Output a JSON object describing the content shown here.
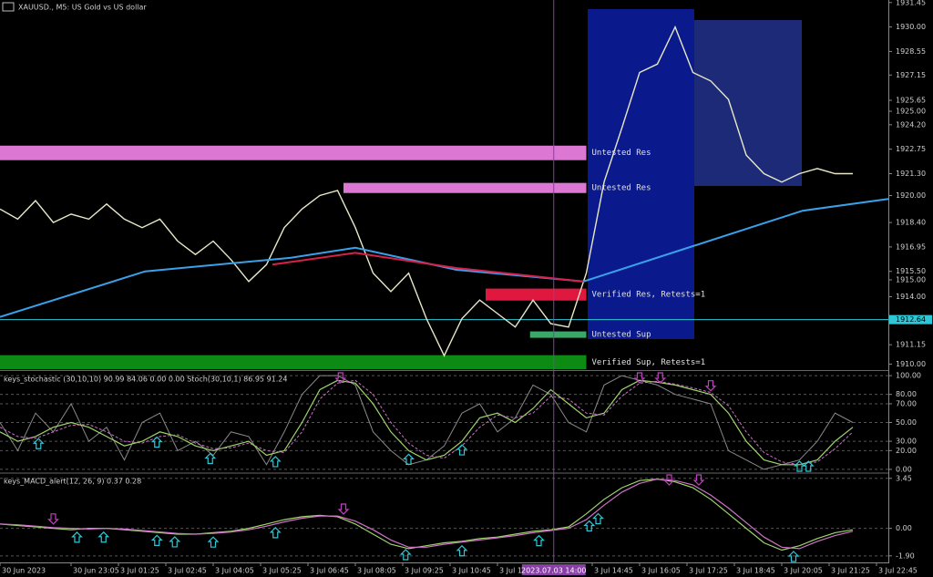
{
  "chart_data": {
    "type": "financial",
    "title": "XAUUSD., M5:  US Gold vs US dollar",
    "xlim": [
      0,
      300
    ],
    "x": [
      0,
      6,
      12,
      18,
      24,
      30,
      36,
      42,
      48,
      54,
      60,
      66,
      72,
      78,
      84,
      90,
      96,
      102,
      108,
      114,
      120,
      126,
      132,
      138,
      144,
      150,
      156,
      162,
      168,
      174,
      180,
      186,
      192,
      198,
      204,
      210,
      216,
      222,
      228,
      234,
      240,
      246,
      252,
      258,
      264,
      270,
      276,
      282,
      288
    ],
    "xticks": [
      {
        "value": 0,
        "label": "30 Jun 2023"
      },
      {
        "value": 24,
        "label": "30 Jun 23:05"
      },
      {
        "value": 40,
        "label": "3 Jul 01:25"
      },
      {
        "value": 56,
        "label": "3 Jul 02:45"
      },
      {
        "value": 72,
        "label": "3 Jul 04:05"
      },
      {
        "value": 88,
        "label": "3 Jul 05:25"
      },
      {
        "value": 104,
        "label": "3 Jul 06:45"
      },
      {
        "value": 120,
        "label": "3 Jul 08:05"
      },
      {
        "value": 136,
        "label": "3 Jul 09:25"
      },
      {
        "value": 152,
        "label": "3 Jul 10:45"
      },
      {
        "value": 168,
        "label": "3 Jul 12:05"
      },
      {
        "value": 200,
        "label": "3 Jul 14:45"
      },
      {
        "value": 216,
        "label": "3 Jul 16:05"
      },
      {
        "value": 232,
        "label": "3 Jul 17:25"
      },
      {
        "value": 248,
        "label": "3 Jul 18:45"
      },
      {
        "value": 264,
        "label": "3 Jul 20:05"
      },
      {
        "value": 280,
        "label": "3 Jul 21:25"
      },
      {
        "value": 296,
        "label": "3 Jul 22:45"
      }
    ],
    "cursor": {
      "value": 187,
      "label": "2023.07.03 14:00"
    },
    "panes": [
      {
        "type": "line",
        "ylim": [
          1909.7,
          1931.6
        ],
        "grid": false,
        "yticks": [
          1931.45,
          {
            "value": 1930,
            "label": "1930.00"
          },
          1928.55,
          1927.15,
          1925.65,
          {
            "value": 1925,
            "label": "1925.00"
          },
          {
            "value": 1924.2,
            "label": "1924.20"
          },
          1922.75,
          {
            "value": 1921.3,
            "label": "1921.30"
          },
          {
            "value": 1920,
            "label": "1920.00"
          },
          {
            "value": 1918.4,
            "label": "1918.40"
          },
          1916.95,
          {
            "value": 1915.5,
            "label": "1915.50"
          },
          {
            "value": 1915,
            "label": "1915.00"
          },
          {
            "value": 1914,
            "label": "1914.00"
          },
          1911.15,
          {
            "value": 1910,
            "label": "1910.00"
          }
        ],
        "current": {
          "value": 1912.64,
          "label": "1912.64",
          "color": "#2fc7d6"
        },
        "zones": [
          {
            "label": "Untested Res",
            "color": "#dd77d4",
            "x": [
              0,
              198
            ],
            "y": [
              1922.1,
              1922.96
            ]
          },
          {
            "label": "Untested Res",
            "color": "#dd77d4",
            "x": [
              116,
              198
            ],
            "y": [
              1920.15,
              1920.75
            ]
          },
          {
            "label": "Verified Res, Retests=1",
            "color": "#e0183f",
            "x": [
              164,
              198
            ],
            "y": [
              1913.77,
              1914.48
            ]
          },
          {
            "label": "Untested Sup",
            "color": "#3aa868",
            "x": [
              179,
              198
            ],
            "y": [
              1911.56,
              1911.94
            ]
          },
          {
            "label": "Verified Sup, Retests=1",
            "color": "#0d8a14",
            "x": [
              0,
              198
            ],
            "y": [
              1909.7,
              1910.53
            ]
          }
        ],
        "series": [
          {
            "color": "#e8e8c8",
            "width": 1.4,
            "values": [
              1919.2,
              1918.6,
              1919.7,
              1918.4,
              1918.9,
              1918.6,
              1919.5,
              1918.6,
              1918.1,
              1918.6,
              1917.3,
              1916.5,
              1917.3,
              1916.2,
              1914.9,
              1915.9,
              1918.1,
              1919.2,
              1920.0,
              1920.3,
              1918.1,
              1915.4,
              1914.3,
              1915.4,
              1912.7,
              1910.5,
              1912.7,
              1913.8,
              1913.0,
              1912.2,
              1913.8,
              1912.4,
              1912.2,
              1915.4,
              1920.8,
              1924.0,
              1927.3,
              1927.8,
              1930.0,
              1927.3,
              1926.8,
              1925.7,
              1922.4,
              1921.3,
              1920.8,
              1921.3,
              1921.6,
              1921.3,
              1921.3
            ]
          },
          {
            "color": "#3aa0e8",
            "width": 2,
            "x": [
              0,
              49,
              98,
              120,
              154,
              197,
              234,
              271,
              300
            ],
            "values": [
              1912.8,
              1915.5,
              1916.3,
              1916.9,
              1915.6,
              1914.9,
              1917.0,
              1919.1,
              1919.8
            ]
          },
          {
            "color": "#d8204c",
            "width": 2,
            "x": [
              92,
              120,
              154,
              197
            ],
            "values": [
              1915.9,
              1916.6,
              1915.7,
              1914.9
            ]
          }
        ]
      },
      {
        "type": "line",
        "title": "keys_stochastic (30,10,10) 90.99 84.06 0.00 0.00 Stoch(30,10,1) 86.95 91.24",
        "ylim": [
          -3,
          104
        ],
        "grid": true,
        "yticks": [
          {
            "value": 100,
            "label": "100.00"
          },
          {
            "value": 80,
            "label": "80.00"
          },
          {
            "value": 70,
            "label": "70.00"
          },
          {
            "value": 50,
            "label": "50.00"
          },
          {
            "value": 30,
            "label": "30.00"
          },
          {
            "value": 20,
            "label": "20.00"
          },
          {
            "value": 0,
            "label": "0.00"
          }
        ],
        "series": [
          {
            "color": "#8a8a8a",
            "width": 1,
            "values": [
              50,
              20,
              60,
              40,
              70,
              30,
              45,
              10,
              50,
              60,
              20,
              30,
              15,
              40,
              35,
              5,
              40,
              80,
              100,
              100,
              90,
              40,
              20,
              5,
              10,
              25,
              60,
              70,
              40,
              55,
              90,
              80,
              50,
              40,
              90,
              100,
              95,
              90,
              80,
              75,
              70,
              20,
              10,
              0,
              5,
              10,
              30,
              60,
              50
            ]
          },
          {
            "color": "#9fd46a",
            "width": 1.2,
            "values": [
              40,
              30,
              35,
              45,
              50,
              45,
              35,
              25,
              30,
              40,
              35,
              25,
              20,
              25,
              30,
              15,
              20,
              50,
              85,
              95,
              92,
              70,
              40,
              20,
              10,
              15,
              30,
              55,
              60,
              50,
              65,
              85,
              70,
              55,
              60,
              85,
              95,
              93,
              90,
              85,
              80,
              60,
              30,
              10,
              5,
              5,
              10,
              30,
              45
            ]
          },
          {
            "color": "#d070c8",
            "width": 1,
            "dash": true,
            "values": [
              45,
              35,
              33,
              40,
              47,
              48,
              40,
              30,
              28,
              35,
              37,
              28,
              22,
              23,
              28,
              20,
              18,
              40,
              75,
              92,
              95,
              80,
              50,
              28,
              15,
              12,
              25,
              45,
              58,
              55,
              60,
              78,
              75,
              60,
              58,
              78,
              92,
              94,
              91,
              87,
              82,
              68,
              40,
              18,
              8,
              5,
              8,
              22,
              40
            ]
          }
        ],
        "up_arrows": [
          13,
          53,
          71,
          93,
          138,
          156,
          270,
          273
        ],
        "down_arrows": [
          115,
          216,
          223,
          240
        ],
        "up_color": "#2fc7d6",
        "down_color": "#c040c0"
      },
      {
        "type": "line",
        "title": "keys_MACD_alert(12, 26, 9) 0.37 0.28",
        "ylim": [
          -2.35,
          3.75
        ],
        "grid": true,
        "yticks": [
          3.45,
          {
            "value": 0,
            "label": "0.00"
          },
          {
            "value": -1.9,
            "label": "-1.90"
          }
        ],
        "series": [
          {
            "color": "#9fd46a",
            "width": 1.2,
            "values": [
              0.3,
              0.2,
              0.1,
              0.0,
              -0.1,
              0.0,
              0.0,
              -0.1,
              -0.2,
              -0.3,
              -0.4,
              -0.4,
              -0.3,
              -0.2,
              0.0,
              0.3,
              0.6,
              0.8,
              0.9,
              0.8,
              0.3,
              -0.4,
              -1.1,
              -1.4,
              -1.2,
              -1.0,
              -0.9,
              -0.7,
              -0.6,
              -0.4,
              -0.2,
              -0.1,
              0.1,
              1.0,
              2.0,
              2.8,
              3.3,
              3.4,
              3.2,
              2.8,
              2.0,
              1.0,
              0.0,
              -1.0,
              -1.5,
              -1.2,
              -0.7,
              -0.3,
              -0.1
            ]
          },
          {
            "color": "#d070c8",
            "width": 1.2,
            "values": [
              0.3,
              0.25,
              0.15,
              0.05,
              0.0,
              -0.05,
              0.0,
              -0.05,
              -0.15,
              -0.25,
              -0.35,
              -0.4,
              -0.35,
              -0.25,
              -0.1,
              0.15,
              0.45,
              0.7,
              0.85,
              0.85,
              0.5,
              -0.1,
              -0.8,
              -1.3,
              -1.3,
              -1.1,
              -0.95,
              -0.8,
              -0.65,
              -0.5,
              -0.3,
              -0.15,
              0.0,
              0.6,
              1.6,
              2.5,
              3.1,
              3.4,
              3.3,
              3.0,
              2.3,
              1.4,
              0.4,
              -0.6,
              -1.3,
              -1.4,
              -0.9,
              -0.5,
              -0.2
            ]
          }
        ],
        "up_arrows": [
          26,
          35,
          53,
          59,
          72,
          93,
          137,
          156,
          182,
          199,
          202,
          268
        ],
        "down_arrows": [
          18,
          116,
          226,
          236
        ],
        "up_color": "#2fc7d6",
        "down_color": "#c040c0"
      }
    ]
  }
}
